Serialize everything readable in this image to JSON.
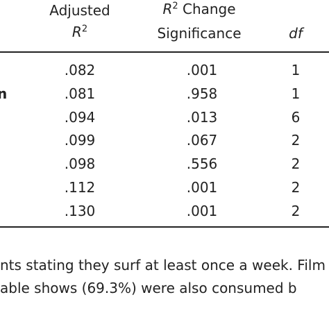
{
  "table": {
    "headers": [
      {
        "line1": "Adjusted",
        "var": "R",
        "sup": "2"
      },
      {
        "var": "R",
        "sup": "2",
        "line1": "Change",
        "line2": "Significance"
      },
      {
        "var": "df"
      }
    ],
    "rows": [
      {
        "cells": [
          ".082",
          ".001",
          "1"
        ]
      },
      {
        "label": "n",
        "cells": [
          ".081",
          ".958",
          "1"
        ]
      },
      {
        "cells": [
          ".094",
          ".013",
          "6"
        ]
      },
      {
        "cells": [
          ".099",
          ".067",
          "2"
        ]
      },
      {
        "cells": [
          ".098",
          ".556",
          "2"
        ]
      },
      {
        "cells": [
          ".112",
          ".001",
          "2"
        ]
      },
      {
        "cells": [
          ".130",
          ".001",
          "2"
        ]
      }
    ]
  },
  "footnote": [
    "nts stating they surf at least once a week. Film",
    "able shows (69.3%) were also consumed b"
  ]
}
